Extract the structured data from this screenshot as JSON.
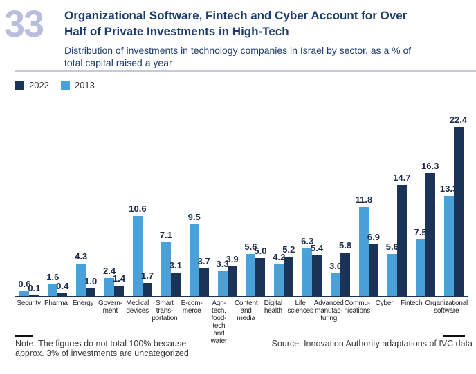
{
  "figure_number": "33",
  "title": "Organizational Software, Fintech and Cyber Account for Over\nHalf of Private Investments in High-Tech",
  "subtitle": "Distribution of investments in technology companies in Israel by sector, as a % of\ntotal capital raised a year",
  "legend": [
    {
      "label": "2022",
      "color": "#1b3357"
    },
    {
      "label": "2013",
      "color": "#4aa0d9"
    }
  ],
  "note": "Note: The figures do not total 100% because\napprox. 3% of investments are uncategorized",
  "source": "Source: Innovation Authority adaptations of IVC data",
  "colors": {
    "bar_2022": "#1b3357",
    "bar_2013": "#4aa0d9",
    "title_navy": "#1e3d6f",
    "figure_number": "#b9bedf",
    "divider": "#c7c8db",
    "axis": "#1b3357",
    "value_label": "#1b2a46"
  },
  "chart_data": {
    "type": "bar",
    "title": "Distribution of investments in technology companies in Israel by sector, as a % of total capital raised a year",
    "xlabel": "",
    "ylabel": "% of total capital raised",
    "ylim": [
      0,
      22.4
    ],
    "grid": false,
    "legend_position": "top-left",
    "value_labels": true,
    "value_label_decimals": 1,
    "categories": [
      "Security",
      "Pharma",
      "Energy",
      "Govern-\nment",
      "Medical\ndevices",
      "Smart\ntrans-\nportation",
      "E-com-\nmerce",
      "Agri-tech,\nfood-tech\nand water",
      "Content\nand\nmedia",
      "Digital\nhealth",
      "Life\nsciences",
      "Advanced\nmanufac-\nturing",
      "Commu-\nnications",
      "Cyber",
      "Fintech",
      "Organizational\nsoftware"
    ],
    "series": [
      {
        "name": "2013",
        "color": "#4aa0d9",
        "values": [
          0.6,
          1.6,
          4.3,
          2.4,
          10.6,
          7.1,
          9.5,
          3.3,
          5.6,
          4.2,
          6.3,
          3.0,
          11.8,
          5.6,
          7.5,
          13.3
        ]
      },
      {
        "name": "2022",
        "color": "#1b3357",
        "values": [
          0.1,
          0.4,
          1.0,
          1.4,
          1.7,
          3.1,
          3.7,
          3.9,
          5.0,
          5.2,
          5.4,
          5.8,
          6.9,
          14.7,
          16.3,
          22.4
        ]
      }
    ]
  }
}
